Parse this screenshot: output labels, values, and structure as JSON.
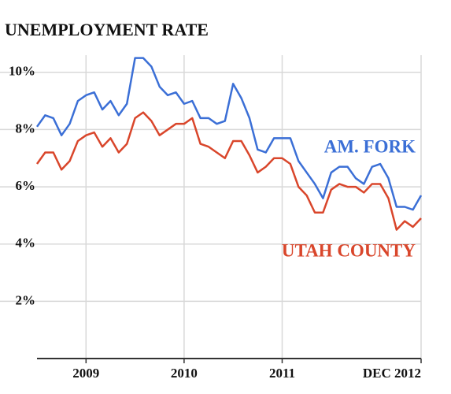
{
  "chart_data": {
    "type": "line",
    "title": "UNEMPLOYMENT RATE",
    "categories": [
      null,
      null,
      null,
      null,
      null,
      null,
      "2009",
      null,
      null,
      null,
      null,
      null,
      null,
      null,
      null,
      null,
      null,
      null,
      "2010",
      null,
      null,
      null,
      null,
      null,
      null,
      null,
      null,
      null,
      null,
      null,
      "2011",
      null,
      null,
      null,
      null,
      null,
      null,
      null,
      null,
      null,
      null,
      null,
      null,
      null,
      null,
      null,
      null,
      "DEC 2012"
    ],
    "series": [
      {
        "name": "AM. FORK",
        "color": "#3b6fd6",
        "values": [
          8.1,
          8.5,
          8.4,
          7.8,
          8.2,
          9.0,
          9.2,
          9.3,
          8.7,
          9.0,
          8.5,
          8.9,
          10.5,
          10.5,
          10.2,
          9.5,
          9.2,
          9.3,
          8.9,
          9.0,
          8.4,
          8.4,
          8.2,
          8.3,
          9.6,
          9.1,
          8.4,
          7.3,
          7.2,
          7.7,
          7.7,
          7.7,
          6.9,
          6.5,
          6.1,
          5.6,
          6.5,
          6.7,
          6.7,
          6.3,
          6.1,
          6.7,
          6.8,
          6.3,
          5.3,
          5.3,
          5.2,
          5.7
        ]
      },
      {
        "name": "UTAH COUNTY",
        "color": "#d9462b",
        "values": [
          6.8,
          7.2,
          7.2,
          6.6,
          6.9,
          7.6,
          7.8,
          7.9,
          7.4,
          7.7,
          7.2,
          7.5,
          8.4,
          8.6,
          8.3,
          7.8,
          8.0,
          8.2,
          8.2,
          8.4,
          7.5,
          7.4,
          7.2,
          7.0,
          7.6,
          7.6,
          7.1,
          6.5,
          6.7,
          7.0,
          7.0,
          6.8,
          6.0,
          5.7,
          5.1,
          5.1,
          5.9,
          6.1,
          6.0,
          6.0,
          5.8,
          6.1,
          6.1,
          5.6,
          4.5,
          4.8,
          4.6,
          4.9
        ]
      }
    ],
    "ylim": [
      0,
      10.6
    ],
    "yticks": [
      {
        "value": 2,
        "label": "2%"
      },
      {
        "value": 4,
        "label": "4%"
      },
      {
        "value": 6,
        "label": "6%"
      },
      {
        "value": 8,
        "label": "8%"
      },
      {
        "value": 10,
        "label": "10%"
      }
    ],
    "grid": true
  }
}
